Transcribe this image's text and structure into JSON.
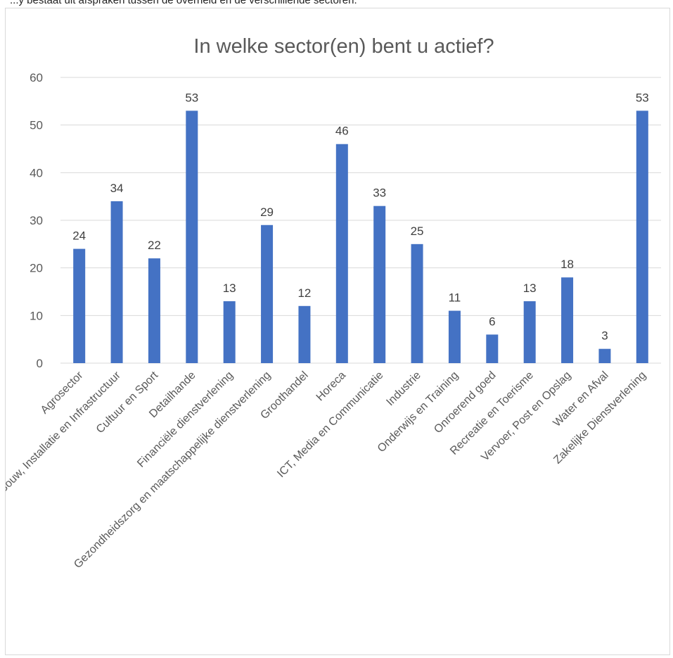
{
  "page": {
    "top_caption": "...y bestaat uit afspraken tussen de overheid en de verschillende sectoren."
  },
  "chart_data": {
    "type": "bar",
    "title": "In welke sector(en) bent u actief?",
    "xlabel": "",
    "ylabel": "",
    "ylim": [
      0,
      60
    ],
    "yticks": [
      0,
      10,
      20,
      30,
      40,
      50,
      60
    ],
    "grid": true,
    "legend": "none",
    "bar_color": "#4472C4",
    "categories": [
      "Agrosector",
      "Bouw, Installatie en Infrastructuur",
      "Cultuur en Sport",
      "Detailhande",
      "Financiële dienstverlening",
      "Gezondheidszorg en maatschappelijke dienstverlening",
      "Groothandel",
      "Horeca",
      "ICT, Media en Communicatie",
      "Industrie",
      "Onderwijs en Training",
      "Onroerend goed",
      "Recreatie en Toerisme",
      "Vervoer, Post en Opslag",
      "Water en Afval",
      "Zakelijke Dienstverlening"
    ],
    "values": [
      24,
      34,
      22,
      53,
      13,
      29,
      12,
      46,
      33,
      25,
      11,
      6,
      13,
      18,
      3,
      53
    ]
  }
}
